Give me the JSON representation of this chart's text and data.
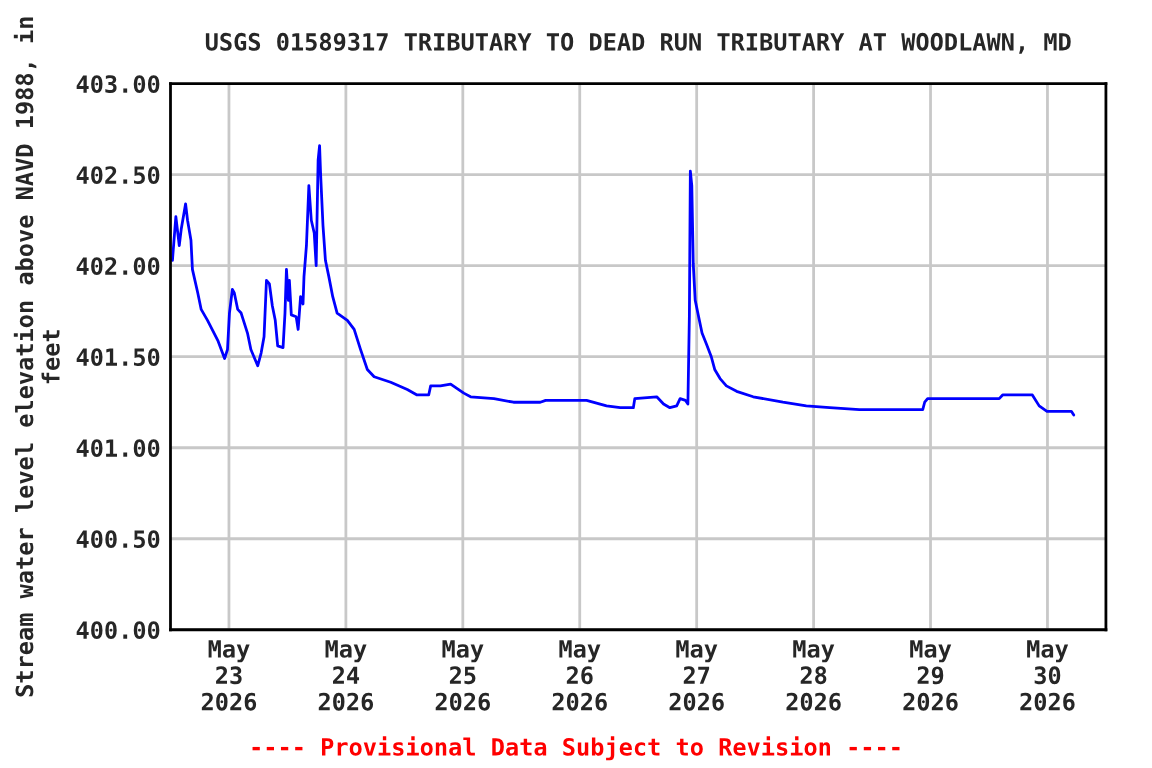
{
  "chart_data": {
    "type": "line",
    "title": "USGS 01589317 TRIBUTARY TO DEAD RUN TRIBUTARY AT WOODLAWN, MD",
    "ylabel": "Stream water level elevation above NAVD 1988, in feet",
    "annotations": [
      "---- Provisional Data Subject to Revision ----"
    ],
    "grid": true,
    "legend": false,
    "marker": "none",
    "line_style": "solid",
    "xlim": [
      "2026-05-22T12:00",
      "2026-05-30T12:00"
    ],
    "xticks": [
      {
        "value": "2026-05-23",
        "label": "May\n23\n2026"
      },
      {
        "value": "2026-05-24",
        "label": "May\n24\n2026"
      },
      {
        "value": "2026-05-25",
        "label": "May\n25\n2026"
      },
      {
        "value": "2026-05-26",
        "label": "May\n26\n2026"
      },
      {
        "value": "2026-05-27",
        "label": "May\n27\n2026"
      },
      {
        "value": "2026-05-28",
        "label": "May\n28\n2026"
      },
      {
        "value": "2026-05-29",
        "label": "May\n29\n2026"
      },
      {
        "value": "2026-05-30",
        "label": "May\n30\n2026"
      }
    ],
    "ylim": [
      400,
      403
    ],
    "yticks": [
      {
        "value": 400,
        "label": "400.00"
      },
      {
        "value": 400.5,
        "label": "400.50"
      },
      {
        "value": 401,
        "label": "401.00"
      },
      {
        "value": 401.5,
        "label": "401.50"
      },
      {
        "value": 402,
        "label": "402.00"
      },
      {
        "value": 402.5,
        "label": "402.50"
      },
      {
        "value": 403,
        "label": "403.00"
      }
    ],
    "series": [
      {
        "color": "#0000ff",
        "x": [
          "2026-05-22T12:24",
          "2026-05-22T13:06",
          "2026-05-22T13:48",
          "2026-05-22T14:12",
          "2026-05-22T15:06",
          "2026-05-22T15:30",
          "2026-05-22T16:12",
          "2026-05-22T16:30",
          "2026-05-22T17:36",
          "2026-05-22T18:18",
          "2026-05-22T19:36",
          "2026-05-22T21:42",
          "2026-05-22T23:06",
          "2026-05-22T23:42",
          "2026-05-23T00:06",
          "2026-05-23T00:42",
          "2026-05-23T01:06",
          "2026-05-23T01:48",
          "2026-05-23T02:30",
          "2026-05-23T03:48",
          "2026-05-23T04:30",
          "2026-05-23T05:54",
          "2026-05-23T06:36",
          "2026-05-23T07:12",
          "2026-05-23T07:42",
          "2026-05-23T08:18",
          "2026-05-23T08:54",
          "2026-05-23T09:30",
          "2026-05-23T10:00",
          "2026-05-23T11:06",
          "2026-05-23T11:30",
          "2026-05-23T11:48",
          "2026-05-23T12:12",
          "2026-05-23T12:24",
          "2026-05-23T12:48",
          "2026-05-23T13:48",
          "2026-05-23T14:12",
          "2026-05-23T14:42",
          "2026-05-23T15:12",
          "2026-05-23T15:24",
          "2026-05-23T15:54",
          "2026-05-23T16:24",
          "2026-05-23T16:54",
          "2026-05-23T17:30",
          "2026-05-23T17:54",
          "2026-05-23T18:18",
          "2026-05-23T18:36",
          "2026-05-23T18:48",
          "2026-05-23T19:18",
          "2026-05-23T19:48",
          "2026-05-23T20:30",
          "2026-05-23T21:18",
          "2026-05-23T22:12",
          "2026-05-24T00:18",
          "2026-05-24T01:42",
          "2026-05-24T03:00",
          "2026-05-24T04:24",
          "2026-05-24T05:48",
          "2026-05-24T09:12",
          "2026-05-24T12:36",
          "2026-05-24T14:36",
          "2026-05-24T17:00",
          "2026-05-24T17:24",
          "2026-05-24T19:24",
          "2026-05-24T21:30",
          "2026-05-25T00:12",
          "2026-05-25T01:36",
          "2026-05-25T06:24",
          "2026-05-25T10:24",
          "2026-05-25T15:54",
          "2026-05-25T17:00",
          "2026-05-26T01:24",
          "2026-05-26T05:30",
          "2026-05-26T08:18",
          "2026-05-26T11:00",
          "2026-05-26T11:18",
          "2026-05-26T15:48",
          "2026-05-26T17:12",
          "2026-05-26T18:30",
          "2026-05-26T19:54",
          "2026-05-26T20:36",
          "2026-05-26T21:42",
          "2026-05-26T22:12",
          "2026-05-26T22:30",
          "2026-05-26T22:42",
          "2026-05-26T23:00",
          "2026-05-26T23:18",
          "2026-05-26T23:42",
          "2026-05-27T00:24",
          "2026-05-27T01:06",
          "2026-05-27T02:00",
          "2026-05-27T03:00",
          "2026-05-27T03:42",
          "2026-05-27T04:48",
          "2026-05-27T06:06",
          "2026-05-27T08:12",
          "2026-05-27T11:36",
          "2026-05-27T17:42",
          "2026-05-27T22:30",
          "2026-05-28T03:18",
          "2026-05-28T09:24",
          "2026-05-28T22:24",
          "2026-05-28T22:48",
          "2026-05-28T23:24",
          "2026-05-29T14:06",
          "2026-05-29T14:48",
          "2026-05-29T20:54",
          "2026-05-29T22:18",
          "2026-05-29T23:54",
          "2026-05-30T04:54",
          "2026-05-30T05:24"
        ],
        "values": [
          402.03,
          402.27,
          402.11,
          402.2,
          402.34,
          402.25,
          402.14,
          401.98,
          401.85,
          401.76,
          401.7,
          401.59,
          401.49,
          401.54,
          401.74,
          401.87,
          401.85,
          401.76,
          401.74,
          401.63,
          401.54,
          401.45,
          401.52,
          401.61,
          401.92,
          401.9,
          401.78,
          401.7,
          401.56,
          401.55,
          401.74,
          401.98,
          401.81,
          401.92,
          401.73,
          401.72,
          401.65,
          401.83,
          401.79,
          401.94,
          402.11,
          402.44,
          402.25,
          402.18,
          402.0,
          402.58,
          402.66,
          402.51,
          402.22,
          402.03,
          401.94,
          401.83,
          401.74,
          401.7,
          401.65,
          401.54,
          401.43,
          401.39,
          401.36,
          401.32,
          401.29,
          401.29,
          401.34,
          401.34,
          401.35,
          401.3,
          401.28,
          401.27,
          401.25,
          401.25,
          401.26,
          401.26,
          401.23,
          401.22,
          401.22,
          401.27,
          401.28,
          401.24,
          401.22,
          401.23,
          401.27,
          401.26,
          401.24,
          401.72,
          402.52,
          402.44,
          402.01,
          401.81,
          401.72,
          401.63,
          401.57,
          401.5,
          401.43,
          401.38,
          401.34,
          401.31,
          401.28,
          401.25,
          401.23,
          401.22,
          401.21,
          401.21,
          401.25,
          401.27,
          401.27,
          401.29,
          401.29,
          401.23,
          401.2,
          401.2,
          401.18
        ]
      }
    ]
  }
}
